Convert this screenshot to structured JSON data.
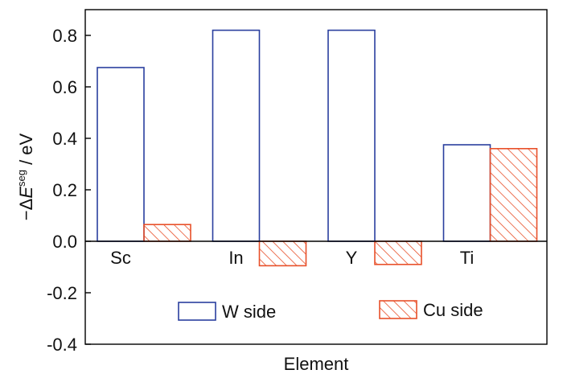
{
  "chart_data": {
    "type": "bar",
    "xlabel": "Element",
    "ylabel": {
      "prefix": "−Δ",
      "symbol": "E",
      "superscript": "seg",
      "unit": " / eV"
    },
    "categories": [
      "Sc",
      "In",
      "Y",
      "Ti"
    ],
    "ylim": [
      -0.4,
      0.9
    ],
    "yticks": [
      -0.4,
      -0.2,
      0.0,
      0.2,
      0.4,
      0.6,
      0.8
    ],
    "ytick_labels": [
      "-0.4",
      "-0.2",
      "0.0",
      "0.2",
      "0.4",
      "0.6",
      "0.8"
    ],
    "grid": false,
    "legend_position": "bottom-center",
    "series": [
      {
        "name": "W side",
        "values": [
          0.675,
          0.82,
          0.82,
          0.375
        ],
        "style": "hollow",
        "color": "#2a3f9e"
      },
      {
        "name": "Cu side",
        "values": [
          0.065,
          -0.095,
          -0.09,
          0.36
        ],
        "style": "hatched",
        "color": "#e8502a"
      }
    ]
  }
}
